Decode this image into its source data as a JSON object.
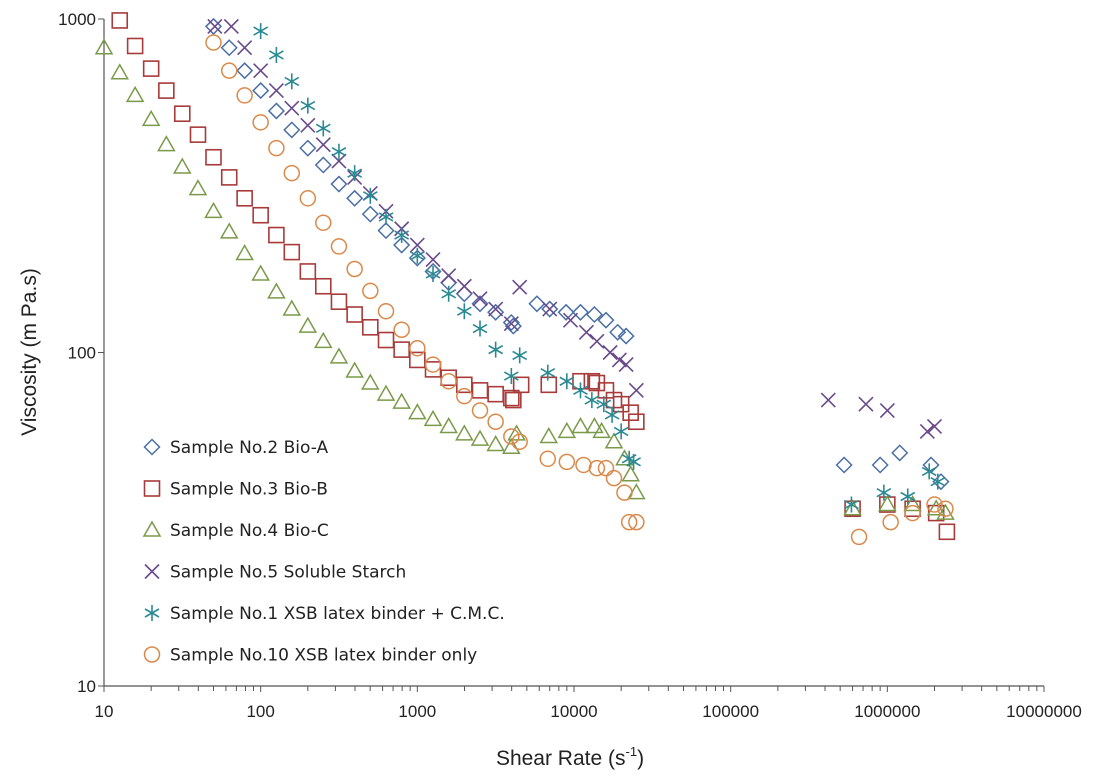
{
  "chart_data": {
    "type": "scatter",
    "title": "",
    "xlabel": "Shear Rate (s",
    "xlabel_sup": "-1",
    "xlabel_close": ")",
    "ylabel": "Viscosity (m Pa.s)",
    "x_scale": "log",
    "y_scale": "log",
    "xlim": [
      10,
      10000000
    ],
    "ylim": [
      10,
      1000
    ],
    "x_tick_labels": [
      "10",
      "100",
      "1000",
      "10000",
      "100000",
      "1000000",
      "10000000"
    ],
    "y_tick_labels": [
      "10",
      "100",
      "1000"
    ],
    "legend_position": "lower-left",
    "grid": false,
    "series": [
      {
        "name": "Sample No.2 Bio-A",
        "marker": "diamond",
        "color": "#4a6fa5",
        "points": [
          [
            50,
            950
          ],
          [
            63,
            820
          ],
          [
            79,
            700
          ],
          [
            100,
            610
          ],
          [
            126,
            530
          ],
          [
            158,
            465
          ],
          [
            200,
            410
          ],
          [
            251,
            365
          ],
          [
            316,
            320
          ],
          [
            398,
            290
          ],
          [
            501,
            260
          ],
          [
            631,
            232
          ],
          [
            794,
            210
          ],
          [
            1000,
            192
          ],
          [
            1259,
            175
          ],
          [
            1585,
            162
          ],
          [
            1995,
            150
          ],
          [
            2512,
            140
          ],
          [
            3162,
            132
          ],
          [
            3981,
            123
          ],
          [
            4100,
            120
          ],
          [
            5800,
            140
          ],
          [
            7000,
            135
          ],
          [
            8900,
            132
          ],
          [
            11000,
            132
          ],
          [
            13500,
            130
          ],
          [
            16000,
            125
          ],
          [
            19000,
            115
          ],
          [
            21500,
            112
          ],
          [
            530000,
            46
          ],
          [
            900000,
            46
          ],
          [
            1200000,
            50
          ],
          [
            1900000,
            46
          ],
          [
            2200000,
            41
          ]
        ]
      },
      {
        "name": "Sample No.3 Bio-B",
        "marker": "square",
        "color": "#a83a3a",
        "points": [
          [
            12.6,
            990
          ],
          [
            15.8,
            830
          ],
          [
            20,
            710
          ],
          [
            25,
            610
          ],
          [
            31.6,
            520
          ],
          [
            39.8,
            450
          ],
          [
            50,
            385
          ],
          [
            63,
            335
          ],
          [
            79,
            290
          ],
          [
            100,
            258
          ],
          [
            126,
            225
          ],
          [
            158,
            200
          ],
          [
            200,
            175
          ],
          [
            251,
            158
          ],
          [
            316,
            142
          ],
          [
            398,
            130
          ],
          [
            501,
            119
          ],
          [
            631,
            109
          ],
          [
            794,
            102
          ],
          [
            1000,
            95
          ],
          [
            1259,
            89
          ],
          [
            1585,
            84
          ],
          [
            1995,
            80
          ],
          [
            2512,
            77
          ],
          [
            3162,
            75
          ],
          [
            3981,
            73
          ],
          [
            4100,
            72
          ],
          [
            4600,
            80
          ],
          [
            6900,
            80
          ],
          [
            11000,
            82
          ],
          [
            13000,
            82
          ],
          [
            14000,
            81
          ],
          [
            16000,
            77
          ],
          [
            18000,
            72
          ],
          [
            20000,
            70
          ],
          [
            23000,
            66
          ],
          [
            25000,
            62
          ],
          [
            600000,
            34
          ],
          [
            1000000,
            35
          ],
          [
            1450000,
            34
          ],
          [
            2050000,
            33
          ],
          [
            2400000,
            29
          ]
        ]
      },
      {
        "name": "Sample No.4 Bio-C",
        "marker": "triangle",
        "color": "#7a9a4a",
        "points": [
          [
            10,
            820
          ],
          [
            12.6,
            690
          ],
          [
            15.8,
            590
          ],
          [
            20,
            500
          ],
          [
            25,
            420
          ],
          [
            31.6,
            360
          ],
          [
            39.8,
            310
          ],
          [
            50,
            265
          ],
          [
            63,
            230
          ],
          [
            79,
            198
          ],
          [
            100,
            172
          ],
          [
            126,
            152
          ],
          [
            158,
            135
          ],
          [
            200,
            120
          ],
          [
            251,
            108
          ],
          [
            316,
            97
          ],
          [
            398,
            88
          ],
          [
            501,
            81
          ],
          [
            631,
            75
          ],
          [
            794,
            71
          ],
          [
            1000,
            66
          ],
          [
            1259,
            63
          ],
          [
            1585,
            60
          ],
          [
            1995,
            57
          ],
          [
            2512,
            55
          ],
          [
            3162,
            53
          ],
          [
            3981,
            52
          ],
          [
            4300,
            57
          ],
          [
            6900,
            56
          ],
          [
            9000,
            58
          ],
          [
            11000,
            60
          ],
          [
            13500,
            60
          ],
          [
            15000,
            58
          ],
          [
            18000,
            54
          ],
          [
            21000,
            48
          ],
          [
            23000,
            43
          ],
          [
            25000,
            38
          ],
          [
            600000,
            34
          ],
          [
            1000000,
            35
          ],
          [
            1450000,
            35
          ],
          [
            2050000,
            34
          ],
          [
            2350000,
            33
          ]
        ]
      },
      {
        "name": "Sample No.5 Soluble Starch",
        "marker": "x",
        "color": "#6a4a8a",
        "points": [
          [
            51,
            950
          ],
          [
            65,
            950
          ],
          [
            79,
            820
          ],
          [
            100,
            700
          ],
          [
            126,
            610
          ],
          [
            158,
            540
          ],
          [
            200,
            480
          ],
          [
            251,
            420
          ],
          [
            316,
            375
          ],
          [
            398,
            335
          ],
          [
            501,
            300
          ],
          [
            631,
            265
          ],
          [
            794,
            235
          ],
          [
            1000,
            210
          ],
          [
            1259,
            190
          ],
          [
            1585,
            170
          ],
          [
            1995,
            158
          ],
          [
            2512,
            145
          ],
          [
            3162,
            135
          ],
          [
            3981,
            122
          ],
          [
            4500,
            157
          ],
          [
            7000,
            135
          ],
          [
            9500,
            125
          ],
          [
            12000,
            115
          ],
          [
            14000,
            108
          ],
          [
            17000,
            100
          ],
          [
            19500,
            95
          ],
          [
            21500,
            92
          ],
          [
            25000,
            77
          ],
          [
            420000,
            72
          ],
          [
            730000,
            70
          ],
          [
            1000000,
            67
          ],
          [
            1800000,
            58
          ],
          [
            2000000,
            60
          ]
        ]
      },
      {
        "name": "Sample No.1 XSB latex binder + C.M.C.",
        "marker": "asterisk",
        "color": "#2a8a94",
        "points": [
          [
            100,
            920
          ],
          [
            126,
            780
          ],
          [
            158,
            650
          ],
          [
            200,
            550
          ],
          [
            251,
            470
          ],
          [
            316,
            400
          ],
          [
            398,
            345
          ],
          [
            501,
            295
          ],
          [
            631,
            255
          ],
          [
            794,
            225
          ],
          [
            1000,
            195
          ],
          [
            1259,
            172
          ],
          [
            1585,
            150
          ],
          [
            1995,
            133
          ],
          [
            2512,
            118
          ],
          [
            3162,
            102
          ],
          [
            3981,
            85
          ],
          [
            4500,
            98
          ],
          [
            6800,
            87
          ],
          [
            9000,
            82
          ],
          [
            11000,
            77
          ],
          [
            13000,
            72
          ],
          [
            15500,
            70
          ],
          [
            17500,
            65
          ],
          [
            20000,
            58
          ],
          [
            22500,
            48
          ],
          [
            24000,
            47
          ],
          [
            590000,
            35
          ],
          [
            950000,
            38
          ],
          [
            1350000,
            37
          ],
          [
            1850000,
            44
          ],
          [
            2100000,
            41
          ]
        ]
      },
      {
        "name": "Sample No.10 XSB latex binder only",
        "marker": "circle",
        "color": "#d98a4a",
        "points": [
          [
            50,
            850
          ],
          [
            63,
            700
          ],
          [
            79,
            590
          ],
          [
            100,
            490
          ],
          [
            126,
            410
          ],
          [
            158,
            345
          ],
          [
            200,
            290
          ],
          [
            251,
            245
          ],
          [
            316,
            208
          ],
          [
            398,
            178
          ],
          [
            501,
            153
          ],
          [
            631,
            133
          ],
          [
            794,
            117
          ],
          [
            1000,
            103
          ],
          [
            1259,
            92
          ],
          [
            1585,
            82
          ],
          [
            1995,
            74
          ],
          [
            2512,
            67
          ],
          [
            3162,
            62
          ],
          [
            3981,
            56
          ],
          [
            4500,
            54
          ],
          [
            6800,
            48
          ],
          [
            9000,
            47
          ],
          [
            11500,
            46
          ],
          [
            14000,
            45
          ],
          [
            16000,
            45
          ],
          [
            18000,
            42
          ],
          [
            21000,
            38
          ],
          [
            22500,
            31
          ],
          [
            25000,
            31
          ],
          [
            660000,
            28
          ],
          [
            1050000,
            31
          ],
          [
            1450000,
            33
          ],
          [
            2000000,
            35
          ],
          [
            2350000,
            34
          ]
        ]
      }
    ]
  }
}
